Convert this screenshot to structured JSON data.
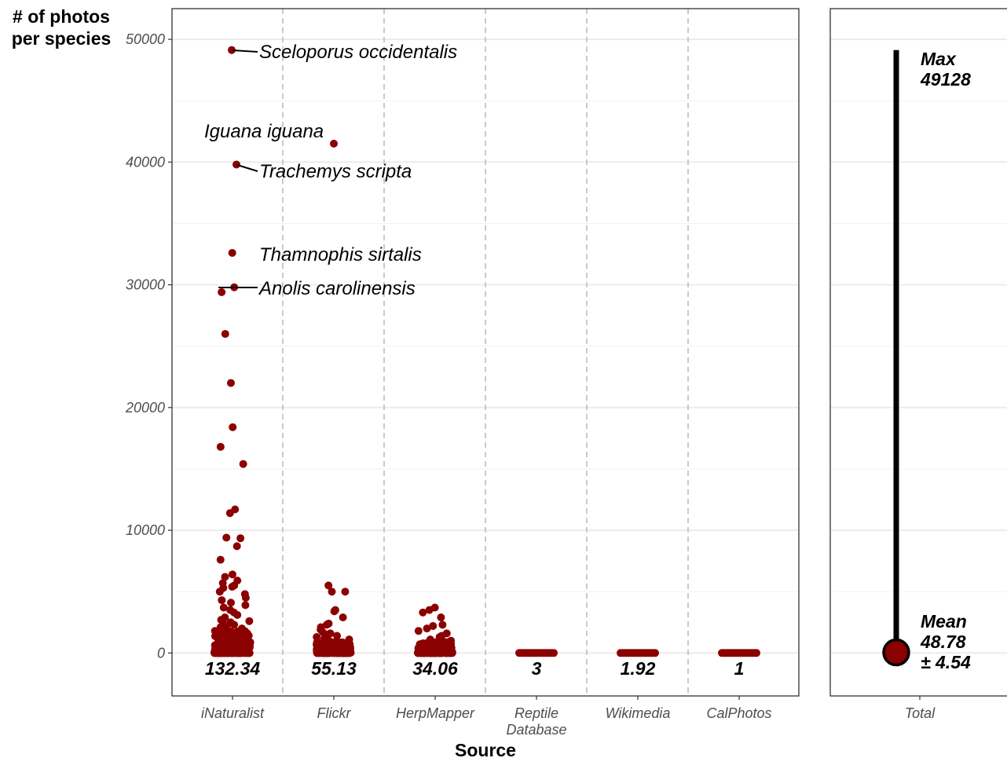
{
  "chart_data": {
    "type": "scatter",
    "ylabel": [
      "# of photos",
      "per species"
    ],
    "xlabel": "Source",
    "ylim": [
      -3500,
      52500
    ],
    "yticks": [
      0,
      10000,
      20000,
      30000,
      40000,
      50000
    ],
    "grid": true,
    "point_color": "#8b0000",
    "categories": [
      {
        "label": [
          "iNaturalist"
        ],
        "mean": "132.34"
      },
      {
        "label": [
          "Flickr"
        ],
        "mean": "55.13"
      },
      {
        "label": [
          "HerpMapper"
        ],
        "mean": "34.06"
      },
      {
        "label": [
          "Reptile",
          "Database"
        ],
        "mean": "3"
      },
      {
        "label": [
          "Wikimedia"
        ],
        "mean": "1.92"
      },
      {
        "label": [
          "CalPhotos"
        ],
        "mean": "1"
      }
    ],
    "points": [
      {
        "cat": 0,
        "values": [
          49128,
          39800,
          32600,
          29800,
          29400,
          26000,
          22000,
          18400,
          16800,
          15400,
          11700,
          11400,
          9400,
          9350,
          8700,
          7600,
          6400,
          6200,
          5900,
          5700,
          5500,
          5400,
          5300,
          5000,
          4800,
          4500,
          4300,
          4100,
          3900,
          3700,
          3500,
          3300,
          3100,
          2900,
          2700,
          2600,
          2500,
          2400,
          2300,
          2200,
          2100,
          2000,
          1900,
          1800,
          1700,
          1600,
          1500,
          1400,
          1300,
          1200,
          1100,
          1000,
          950,
          900,
          850,
          800,
          750,
          700,
          650,
          600,
          550,
          500,
          450,
          400,
          350,
          300,
          280,
          250,
          220,
          200,
          180,
          160,
          140,
          120,
          100,
          90,
          80,
          70,
          60,
          50,
          40,
          30,
          25,
          20,
          15,
          10,
          8,
          6,
          4,
          2,
          1,
          1,
          1,
          1,
          1
        ]
      },
      {
        "cat": 1,
        "values": [
          41500,
          5500,
          5000,
          5000,
          3500,
          3400,
          2900,
          2400,
          2300,
          2100,
          1900,
          1700,
          1600,
          1500,
          1400,
          1300,
          1200,
          1100,
          1000,
          900,
          800,
          700,
          600,
          550,
          500,
          450,
          400,
          350,
          300,
          250,
          200,
          150,
          120,
          100,
          80,
          60,
          40,
          30,
          20,
          10,
          5,
          2,
          1,
          1
        ]
      },
      {
        "cat": 2,
        "values": [
          3700,
          3500,
          3300,
          2900,
          2300,
          2200,
          2000,
          1800,
          1600,
          1400,
          1300,
          1200,
          1100,
          1000,
          900,
          800,
          700,
          600,
          500,
          450,
          400,
          350,
          300,
          250,
          200,
          150,
          100,
          80,
          60,
          40,
          20,
          10,
          5,
          1,
          1
        ]
      },
      {
        "cat": 3,
        "values": [
          3,
          3,
          3,
          2,
          2,
          2,
          1,
          1,
          1,
          1,
          1,
          1,
          1,
          1,
          1,
          1,
          1,
          1
        ]
      },
      {
        "cat": 4,
        "values": [
          2,
          2,
          2,
          2,
          1,
          1,
          1,
          1,
          1,
          1,
          1,
          1,
          1,
          1,
          1,
          1,
          1,
          1
        ]
      },
      {
        "cat": 5,
        "values": [
          1,
          1,
          1,
          1,
          1,
          1,
          1,
          1,
          1,
          1,
          1,
          1,
          1,
          1,
          1,
          1,
          1,
          1
        ]
      }
    ],
    "annotations": [
      {
        "text": "Sceloporus occidentalis",
        "cat": 0,
        "value": 49128
      },
      {
        "text": "Iguana iguana",
        "cat": 1,
        "value": 41500
      },
      {
        "text": "Trachemys scripta",
        "cat": 0,
        "value": 39800
      },
      {
        "text": "Thamnophis sirtalis",
        "cat": 0,
        "value": 32600
      },
      {
        "text": "Anolis carolinensis",
        "cat": 0,
        "value": 29800
      }
    ],
    "total_panel": {
      "label": "Total",
      "max_label": [
        "Max",
        "49128"
      ],
      "mean_label": [
        "Mean",
        "48.78",
        "± 4.54"
      ],
      "max": 49128,
      "mean": 48.78
    }
  }
}
